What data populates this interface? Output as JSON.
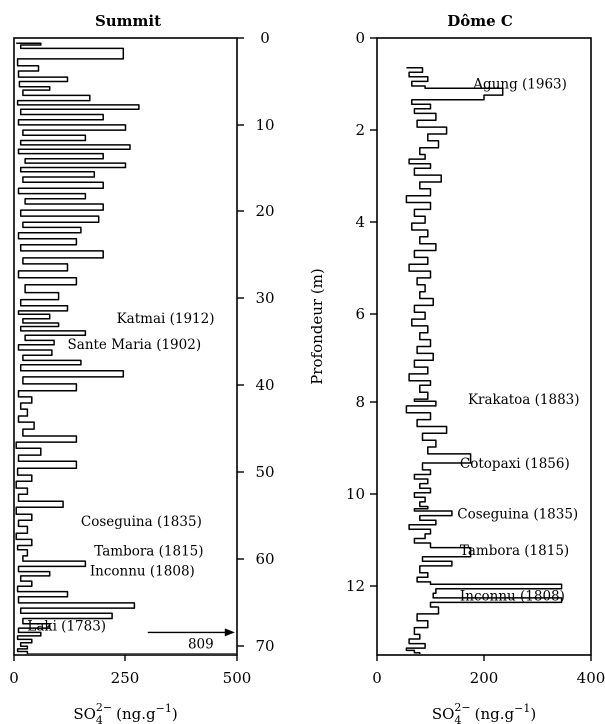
{
  "chart_data": [
    {
      "type": "line",
      "title": "Summit",
      "xlabel": "SO4 2- (ng.g-1)",
      "xlabel_parts": {
        "base": "SO",
        "sub": "4",
        "sup": "2−",
        "unit": "(ng.g",
        "unit_sup": "−1",
        "unit_close": ")"
      },
      "xlim": [
        0,
        500
      ],
      "ylim": [
        0,
        71
      ],
      "y_inverted": true,
      "x_ticks": [
        "0",
        "250",
        "500"
      ],
      "y_ticks": [
        "0",
        "10",
        "20",
        "30",
        "40",
        "50",
        "60",
        "70"
      ],
      "series": [
        {
          "x": [
            5,
            60,
            15,
            245,
            8,
            55,
            10,
            120,
            12,
            80,
            20,
            170,
            8,
            280,
            15,
            200,
            10,
            250,
            20,
            160,
            15,
            260,
            10,
            200,
            25,
            250,
            15,
            180,
            20,
            200,
            10,
            160,
            25,
            200,
            15,
            190,
            20,
            150,
            10,
            140,
            15,
            200,
            20,
            120,
            10,
            140,
            25,
            100,
            15,
            120,
            10,
            80,
            20,
            100,
            15,
            160,
            25,
            90,
            10,
            85,
            20,
            150,
            15,
            245,
            20,
            140,
            10,
            40,
            15,
            30,
            10,
            45,
            20,
            140,
            5,
            60,
            10,
            140,
            8,
            40,
            5,
            30,
            10,
            110,
            5,
            40,
            10,
            30,
            5,
            40,
            8,
            30,
            20,
            160,
            10,
            80,
            15,
            40,
            8,
            120,
            10,
            270,
            15,
            220,
            20,
            80,
            10,
            60,
            8,
            40,
            15,
            30,
            8,
            30,
            500
          ],
          "y": [
            0.6,
            0.8,
            1.2,
            2.4,
            3.2,
            3.8,
            4.5,
            5.0,
            5.6,
            6.0,
            6.6,
            7.2,
            7.7,
            8.2,
            8.8,
            9.4,
            10.0,
            10.6,
            11.2,
            11.8,
            12.3,
            12.8,
            13.3,
            13.9,
            14.4,
            14.9,
            15.4,
            16.0,
            16.6,
            17.3,
            17.9,
            18.5,
            19.1,
            19.8,
            20.5,
            21.2,
            21.8,
            22.4,
            23.1,
            23.8,
            24.5,
            25.3,
            26.0,
            26.8,
            27.6,
            28.4,
            29.3,
            30.1,
            30.8,
            31.4,
            31.8,
            32.3,
            32.8,
            33.2,
            33.7,
            34.2,
            34.8,
            35.3,
            35.9,
            36.5,
            37.1,
            37.6,
            38.3,
            39.0,
            39.8,
            40.6,
            41.3,
            42.0,
            42.7,
            43.5,
            44.2,
            45.0,
            45.8,
            46.5,
            47.2,
            48.0,
            48.7,
            49.5,
            50.3,
            51.0,
            51.8,
            52.5,
            53.3,
            54.0,
            54.8,
            55.5,
            56.2,
            57.0,
            57.7,
            58.4,
            58.9,
            59.6,
            60.2,
            60.8,
            61.4,
            61.9,
            62.5,
            63.1,
            63.7,
            64.3,
            65.0,
            65.6,
            66.2,
            66.8,
            67.4,
            67.9,
            68.4,
            68.8,
            69.2,
            69.6,
            70.0,
            70.3,
            70.6,
            70.9,
            71.0
          ]
        }
      ],
      "annotations": [
        {
          "text": "Katmai (1912)",
          "x": 230,
          "y": 32.2
        },
        {
          "text": "Sante Maria (1902)",
          "x": 120,
          "y": 35.2
        },
        {
          "text": "Coseguina (1835)",
          "x": 150,
          "y": 55.6
        },
        {
          "text": "Tambora (1815)",
          "x": 180,
          "y": 59.0
        },
        {
          "text": "Inconnu (1808)",
          "x": 170,
          "y": 61.3
        },
        {
          "text": "Laki (1783)",
          "x": 30,
          "y": 67.6
        }
      ],
      "offscale": {
        "label": "809",
        "y": 68.4
      }
    },
    {
      "type": "line",
      "title": "Dôme C",
      "xlabel": "SO4 2- (ng.g-1)",
      "xlabel_parts": {
        "base": "SO",
        "sub": "4",
        "sup": "2−",
        "unit": "(ng.g",
        "unit_sup": "−1",
        "unit_close": ")"
      },
      "ylabel": "Profondeur (m)",
      "xlim": [
        0,
        400
      ],
      "ylim": [
        0,
        13.5
      ],
      "y_inverted": true,
      "x_ticks": [
        "0",
        "200",
        "400"
      ],
      "y_ticks": [
        "0",
        "2",
        "4",
        "6",
        "8",
        "10",
        "12"
      ],
      "series": [
        {
          "x": [
            55,
            85,
            60,
            95,
            65,
            90,
            235,
            200,
            65,
            100,
            70,
            110,
            75,
            130,
            95,
            115,
            80,
            90,
            60,
            100,
            70,
            120,
            80,
            100,
            55,
            100,
            70,
            90,
            65,
            95,
            80,
            110,
            70,
            95,
            60,
            100,
            75,
            90,
            80,
            105,
            70,
            90,
            65,
            95,
            80,
            100,
            75,
            105,
            70,
            95,
            60,
            100,
            80,
            95,
            70,
            110,
            55,
            100,
            75,
            130,
            85,
            110,
            95,
            175,
            85,
            100,
            70,
            95,
            80,
            100,
            70,
            90,
            80,
            95,
            70,
            140,
            80,
            110,
            60,
            100,
            90,
            70,
            100,
            175,
            85,
            140,
            80,
            95,
            75,
            100,
            345,
            110,
            105,
            345,
            100,
            115,
            75,
            95,
            70,
            80,
            60,
            90,
            55,
            70,
            80
          ],
          "y": [
            0.65,
            0.75,
            0.85,
            0.95,
            1.05,
            1.1,
            1.25,
            1.35,
            1.45,
            1.55,
            1.65,
            1.8,
            1.95,
            2.1,
            2.25,
            2.4,
            2.55,
            2.65,
            2.75,
            2.85,
            3.0,
            3.15,
            3.3,
            3.45,
            3.6,
            3.75,
            3.9,
            4.05,
            4.2,
            4.35,
            4.5,
            4.65,
            4.8,
            4.95,
            5.1,
            5.25,
            5.4,
            5.55,
            5.7,
            5.85,
            6.0,
            6.15,
            6.3,
            6.45,
            6.6,
            6.75,
            6.9,
            7.05,
            7.2,
            7.35,
            7.5,
            7.6,
            7.75,
            7.9,
            7.95,
            8.05,
            8.2,
            8.35,
            8.5,
            8.65,
            8.8,
            8.95,
            9.1,
            9.3,
            9.45,
            9.55,
            9.65,
            9.75,
            9.85,
            9.95,
            10.05,
            10.15,
            10.25,
            10.3,
            10.35,
            10.45,
            10.55,
            10.65,
            10.75,
            10.85,
            10.95,
            11.05,
            11.15,
            11.35,
            11.45,
            11.55,
            11.7,
            11.8,
            11.9,
            11.95,
            12.05,
            12.15,
            12.25,
            12.35,
            12.45,
            12.6,
            12.75,
            12.9,
            13.05,
            13.15,
            13.25,
            13.35,
            13.4,
            13.45,
            13.5
          ]
        }
      ],
      "annotations": [
        {
          "text": "Agung (1963)",
          "x": 180,
          "y": 1.0
        },
        {
          "text": "Krakatoa (1883)",
          "x": 170,
          "y": 7.9
        },
        {
          "text": "Cotopaxi (1856)",
          "x": 155,
          "y": 9.3
        },
        {
          "text": "Coseguina (1835)",
          "x": 150,
          "y": 10.4
        },
        {
          "text": "Tambora (1815)",
          "x": 155,
          "y": 11.2
        },
        {
          "text": "Inconnu (1808)",
          "x": 155,
          "y": 12.2
        }
      ]
    }
  ]
}
